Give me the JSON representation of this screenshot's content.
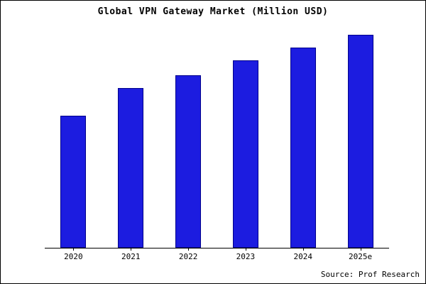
{
  "chart_data": {
    "type": "bar",
    "title": "Global VPN Gateway Market (Million USD)",
    "categories": [
      "2020",
      "2021",
      "2022",
      "2023",
      "2024",
      "2025e"
    ],
    "values": [
      62,
      75,
      81,
      88,
      94,
      100
    ],
    "xlabel": "",
    "ylabel": "",
    "ylim": [
      0,
      100
    ],
    "grid": false,
    "legend": "none",
    "bar_fill_color": "#1c1ce0",
    "bar_edge_color": "#00008b",
    "source": "Source: Prof Research"
  }
}
